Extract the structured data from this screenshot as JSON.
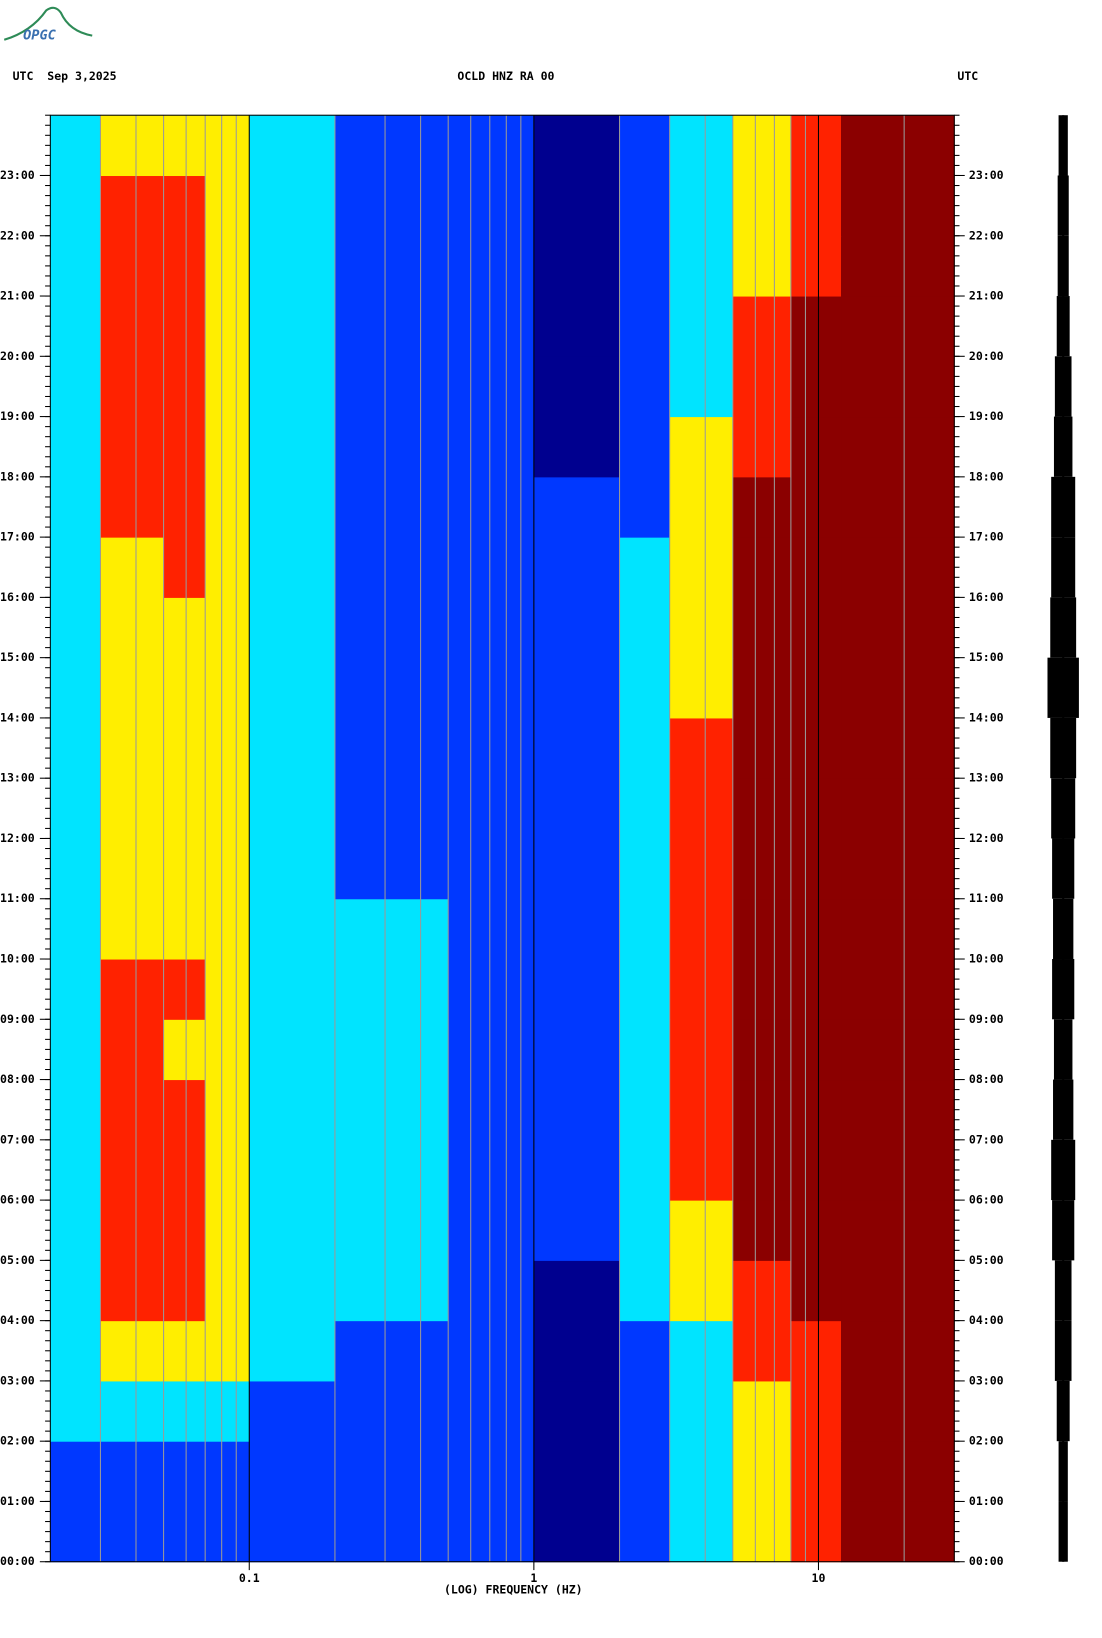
{
  "header": {
    "logo": "OPGC",
    "left": "UTC  Sep 3,2025",
    "center": "OCLD HNZ RA 00",
    "right": "UTC"
  },
  "chart_data": {
    "type": "spectrogram",
    "xlabel": "(LOG) FREQUENCY (HZ)",
    "xscale": "log",
    "xlim": [
      0.02,
      30
    ],
    "xticks": [
      0.1,
      1,
      10
    ],
    "ylim": [
      0,
      24
    ],
    "yticks": [
      {
        "value": 0,
        "label": "00:00"
      },
      {
        "value": 1,
        "label": "01:00"
      },
      {
        "value": 2,
        "label": "02:00"
      },
      {
        "value": 3,
        "label": "03:00"
      },
      {
        "value": 4,
        "label": "04:00"
      },
      {
        "value": 5,
        "label": "05:00"
      },
      {
        "value": 6,
        "label": "06:00"
      },
      {
        "value": 7,
        "label": "07:00"
      },
      {
        "value": 8,
        "label": "08:00"
      },
      {
        "value": 9,
        "label": "09:00"
      },
      {
        "value": 10,
        "label": "10:00"
      },
      {
        "value": 11,
        "label": "11:00"
      },
      {
        "value": 12,
        "label": "12:00"
      },
      {
        "value": 13,
        "label": "13:00"
      },
      {
        "value": 14,
        "label": "14:00"
      },
      {
        "value": 15,
        "label": "15:00"
      },
      {
        "value": 16,
        "label": "16:00"
      },
      {
        "value": 17,
        "label": "17:00"
      },
      {
        "value": 18,
        "label": "18:00"
      },
      {
        "value": 19,
        "label": "19:00"
      },
      {
        "value": 20,
        "label": "20:00"
      },
      {
        "value": 21,
        "label": "21:00"
      },
      {
        "value": 22,
        "label": "22:00"
      },
      {
        "value": 23,
        "label": "23:00"
      }
    ],
    "freq_edges": [
      0.02,
      0.03,
      0.05,
      0.07,
      0.1,
      0.2,
      0.5,
      1,
      2,
      3,
      5,
      8,
      12,
      30
    ],
    "colormap": [
      "#00008f",
      "#0038ff",
      "#00e4ff",
      "#ffee00",
      "#ff2200",
      "#8b0000"
    ],
    "z": [
      [
        1,
        1,
        1,
        1,
        1,
        1,
        1,
        0,
        1,
        2,
        3,
        4,
        5
      ],
      [
        1,
        1,
        1,
        1,
        1,
        1,
        1,
        0,
        1,
        2,
        3,
        4,
        5
      ],
      [
        2,
        2,
        2,
        2,
        1,
        1,
        1,
        0,
        1,
        2,
        3,
        4,
        5
      ],
      [
        2,
        3,
        3,
        3,
        2,
        1,
        1,
        0,
        1,
        2,
        4,
        4,
        5
      ],
      [
        2,
        4,
        4,
        3,
        2,
        2,
        1,
        0,
        2,
        3,
        4,
        5,
        5
      ],
      [
        2,
        4,
        4,
        3,
        2,
        2,
        1,
        1,
        2,
        3,
        5,
        5,
        5
      ],
      [
        2,
        4,
        4,
        3,
        2,
        2,
        1,
        1,
        2,
        4,
        5,
        5,
        5
      ],
      [
        2,
        4,
        4,
        3,
        2,
        2,
        1,
        1,
        2,
        4,
        5,
        5,
        5
      ],
      [
        2,
        4,
        3,
        3,
        2,
        2,
        1,
        1,
        2,
        4,
        5,
        5,
        5
      ],
      [
        2,
        4,
        4,
        3,
        2,
        2,
        1,
        1,
        2,
        4,
        5,
        5,
        5
      ],
      [
        2,
        3,
        3,
        3,
        2,
        2,
        1,
        1,
        2,
        4,
        5,
        5,
        5
      ],
      [
        2,
        3,
        3,
        3,
        2,
        1,
        1,
        1,
        2,
        4,
        5,
        5,
        5
      ],
      [
        2,
        3,
        3,
        3,
        2,
        1,
        1,
        1,
        2,
        4,
        5,
        5,
        5
      ],
      [
        2,
        3,
        3,
        3,
        2,
        1,
        1,
        1,
        2,
        4,
        5,
        5,
        5
      ],
      [
        2,
        3,
        3,
        3,
        2,
        1,
        1,
        1,
        2,
        3,
        5,
        5,
        5
      ],
      [
        2,
        3,
        3,
        3,
        2,
        1,
        1,
        1,
        2,
        3,
        5,
        5,
        5
      ],
      [
        2,
        3,
        4,
        3,
        2,
        1,
        1,
        1,
        2,
        3,
        5,
        5,
        5
      ],
      [
        2,
        4,
        4,
        3,
        2,
        1,
        1,
        1,
        1,
        3,
        5,
        5,
        5
      ],
      [
        2,
        4,
        4,
        3,
        2,
        1,
        1,
        0,
        1,
        3,
        4,
        5,
        5
      ],
      [
        2,
        4,
        4,
        3,
        2,
        1,
        1,
        0,
        1,
        2,
        4,
        5,
        5
      ],
      [
        2,
        4,
        4,
        3,
        2,
        1,
        1,
        0,
        1,
        2,
        4,
        5,
        5
      ],
      [
        2,
        4,
        4,
        3,
        2,
        1,
        1,
        0,
        1,
        2,
        3,
        4,
        5
      ],
      [
        2,
        4,
        4,
        3,
        2,
        1,
        1,
        0,
        1,
        2,
        3,
        4,
        5
      ],
      [
        2,
        3,
        3,
        3,
        2,
        1,
        1,
        0,
        1,
        2,
        3,
        4,
        5
      ]
    ],
    "trace_envelope": [
      5,
      5,
      7,
      9,
      9,
      12,
      13,
      11,
      10,
      12,
      11,
      12,
      13,
      14,
      17,
      14,
      13,
      13,
      10,
      9,
      7,
      6,
      6,
      5
    ]
  }
}
